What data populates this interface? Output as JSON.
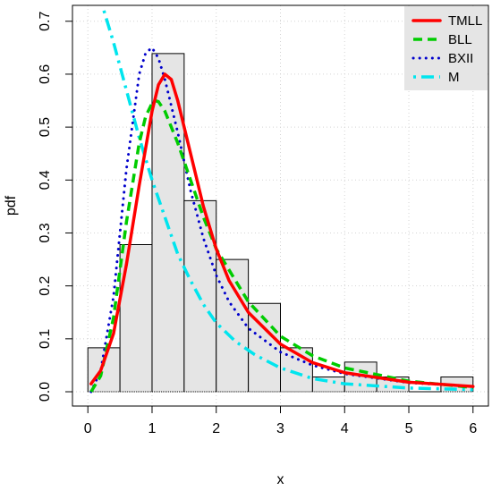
{
  "chart_data": {
    "type": "histogram-with-density-curves",
    "xlabel": "x",
    "ylabel": "pdf",
    "xlim": [
      0,
      6
    ],
    "ylim": [
      0,
      0.7
    ],
    "x_ticks": [
      "0",
      "1",
      "2",
      "3",
      "4",
      "5",
      "6"
    ],
    "y_ticks": [
      "0.0",
      "0.1",
      "0.2",
      "0.3",
      "0.4",
      "0.5",
      "0.6",
      "0.7"
    ],
    "grid": true,
    "legend_position": "top-right",
    "histogram": {
      "bin_edges": [
        0,
        0.5,
        1.0,
        1.5,
        2.0,
        2.5,
        3.0,
        3.5,
        4.0,
        4.5,
        5.0,
        5.5,
        6.0
      ],
      "heights": [
        0.083,
        0.278,
        0.639,
        0.361,
        0.25,
        0.167,
        0.083,
        0.028,
        0.056,
        0.028,
        0.0,
        0.028
      ],
      "fill": "#e5e5e5"
    },
    "series": [
      {
        "name": "TMLL",
        "color": "#ff0000",
        "style": "solid",
        "x": [
          0.05,
          0.2,
          0.4,
          0.6,
          0.8,
          1.0,
          1.1,
          1.2,
          1.3,
          1.4,
          1.6,
          1.8,
          2.0,
          2.2,
          2.5,
          3.0,
          3.5,
          4.0,
          5.0,
          6.0
        ],
        "y": [
          0.015,
          0.04,
          0.11,
          0.24,
          0.39,
          0.53,
          0.58,
          0.6,
          0.59,
          0.55,
          0.45,
          0.35,
          0.27,
          0.21,
          0.15,
          0.09,
          0.055,
          0.036,
          0.018,
          0.01
        ]
      },
      {
        "name": "BLL",
        "color": "#00cc00",
        "style": "dashed",
        "x": [
          0.05,
          0.2,
          0.4,
          0.6,
          0.8,
          0.9,
          1.0,
          1.05,
          1.1,
          1.2,
          1.4,
          1.6,
          1.8,
          2.0,
          2.5,
          3.0,
          3.5,
          4.0,
          5.0,
          6.0
        ],
        "y": [
          0.0,
          0.03,
          0.14,
          0.32,
          0.47,
          0.52,
          0.545,
          0.55,
          0.548,
          0.53,
          0.47,
          0.4,
          0.33,
          0.27,
          0.17,
          0.105,
          0.068,
          0.045,
          0.02,
          0.008
        ]
      },
      {
        "name": "BXII",
        "color": "#0000cc",
        "style": "dotted",
        "x": [
          0.05,
          0.2,
          0.4,
          0.6,
          0.8,
          0.9,
          1.0,
          1.1,
          1.2,
          1.4,
          1.6,
          1.8,
          2.0,
          2.2,
          2.5,
          3.0,
          3.5,
          4.0,
          5.0,
          6.0
        ],
        "y": [
          0.0,
          0.04,
          0.18,
          0.42,
          0.6,
          0.64,
          0.65,
          0.63,
          0.59,
          0.49,
          0.38,
          0.29,
          0.22,
          0.17,
          0.12,
          0.075,
          0.05,
          0.034,
          0.017,
          0.01
        ]
      },
      {
        "name": "M",
        "color": "#00e5ee",
        "style": "dotdash",
        "x": [
          0.25,
          0.4,
          0.6,
          0.8,
          1.0,
          1.2,
          1.4,
          1.6,
          1.8,
          2.0,
          2.3,
          2.6,
          3.0,
          3.5,
          4.0,
          5.0,
          6.0
        ],
        "y": [
          0.72,
          0.66,
          0.57,
          0.48,
          0.4,
          0.33,
          0.26,
          0.21,
          0.165,
          0.13,
          0.095,
          0.07,
          0.045,
          0.025,
          0.015,
          0.007,
          0.004
        ]
      }
    ]
  }
}
